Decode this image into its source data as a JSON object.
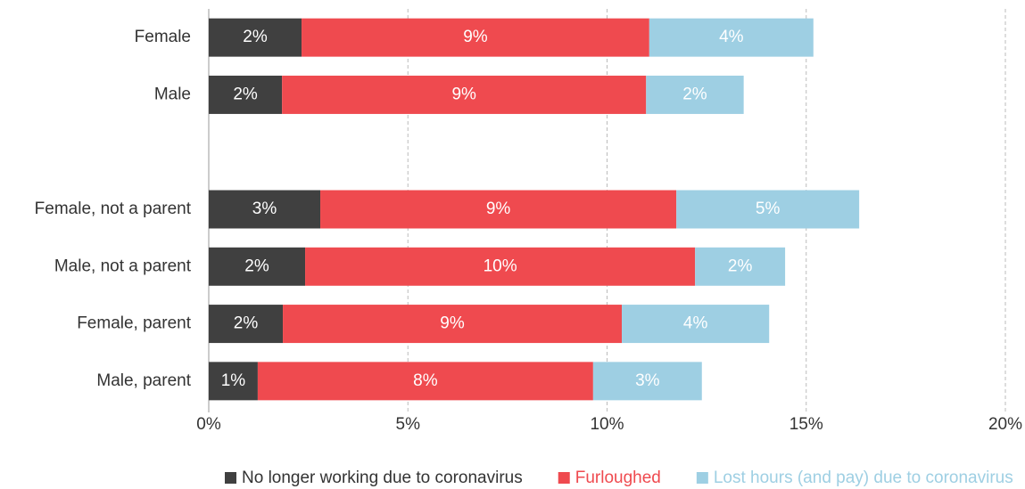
{
  "chart_data": {
    "type": "stacked-barh",
    "categories": [
      "Female",
      "Male",
      null,
      "Female, not a parent",
      "Male, not a parent",
      "Female, parent",
      "Male, parent"
    ],
    "series": [
      {
        "name": "No longer working due to coronavirus",
        "color": "#404040",
        "values": [
          2.33,
          1.84,
          null,
          2.8,
          2.42,
          1.86,
          1.23
        ],
        "value_labels": [
          "2%",
          "2%",
          null,
          "3%",
          "2%",
          "2%",
          "1%"
        ]
      },
      {
        "name": "Furloughed",
        "color": "#ef4a4f",
        "values": [
          8.73,
          9.14,
          null,
          8.94,
          9.79,
          8.51,
          8.42
        ],
        "value_labels": [
          "9%",
          "9%",
          null,
          "9%",
          "10%",
          "9%",
          "8%"
        ]
      },
      {
        "name": "Lost hours (and pay) due to coronavirus",
        "color": "#9ecfe3",
        "values": [
          4.12,
          2.45,
          null,
          4.59,
          2.26,
          3.7,
          2.73
        ],
        "value_labels": [
          "4%",
          "2%",
          null,
          "5%",
          "2%",
          "4%",
          "3%"
        ]
      }
    ],
    "xlim": [
      0,
      20
    ],
    "xticks": [
      {
        "value": 0,
        "label": "0%"
      },
      {
        "value": 5,
        "label": "5%"
      },
      {
        "value": 10,
        "label": "10%"
      },
      {
        "value": 15,
        "label": "15%"
      },
      {
        "value": 20,
        "label": "20%"
      }
    ],
    "grid": true
  }
}
